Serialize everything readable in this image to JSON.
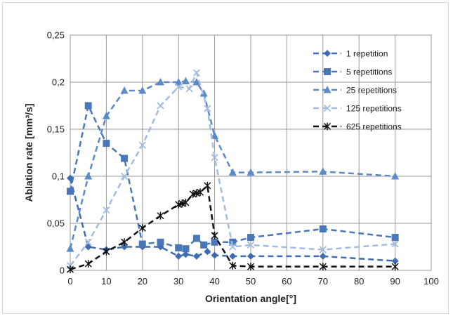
{
  "chart_data": {
    "type": "line",
    "title": "",
    "xlabel": "Orientation angle[°]",
    "ylabel": "Ablation rate [mm³/s]",
    "xlim": [
      0,
      100
    ],
    "ylim": [
      0,
      0.25
    ],
    "xticks": [
      "0",
      "10",
      "20",
      "30",
      "40",
      "50",
      "60",
      "70",
      "80",
      "90",
      "100"
    ],
    "yticks": [
      "0",
      "0,05",
      "0,1",
      "0,15",
      "0,2",
      "0,25"
    ],
    "grid": true,
    "legend_position": "top-right",
    "series": [
      {
        "name": "1 repetition",
        "color": "#3d6cb0",
        "marker": "diamond",
        "x": [
          0,
          5,
          10,
          15,
          20,
          25,
          30,
          32,
          35,
          38,
          40,
          45,
          50,
          70,
          90
        ],
        "y": [
          0.098,
          0.025,
          0.022,
          0.025,
          0.025,
          0.025,
          0.015,
          0.017,
          0.015,
          0.02,
          0.016,
          0.015,
          0.015,
          0.015,
          0.01
        ]
      },
      {
        "name": "5 repetitions",
        "color": "#4a77b8",
        "marker": "square",
        "x": [
          0,
          5,
          10,
          15,
          20,
          25,
          30,
          32,
          35,
          37,
          40,
          45,
          50,
          70,
          90
        ],
        "y": [
          0.084,
          0.175,
          0.135,
          0.119,
          0.028,
          0.03,
          0.024,
          0.023,
          0.034,
          0.027,
          0.03,
          0.03,
          0.035,
          0.044,
          0.035
        ]
      },
      {
        "name": "25 repetitions",
        "color": "#5b8ac7",
        "marker": "triangle",
        "x": [
          0,
          5,
          10,
          15,
          20,
          25,
          30,
          32,
          35,
          37,
          40,
          45,
          50,
          70,
          90
        ],
        "y": [
          0.023,
          0.1,
          0.164,
          0.191,
          0.191,
          0.2,
          0.2,
          0.201,
          0.2,
          0.188,
          0.143,
          0.104,
          0.104,
          0.105,
          0.1
        ]
      },
      {
        "name": "125 repetitions",
        "color": "#a3bde0",
        "marker": "x",
        "x": [
          0,
          5,
          10,
          15,
          20,
          25,
          30,
          33,
          35,
          38,
          40,
          45,
          50,
          70,
          90
        ],
        "y": [
          0.005,
          0.03,
          0.064,
          0.1,
          0.133,
          0.175,
          0.195,
          0.193,
          0.21,
          0.172,
          0.12,
          0.025,
          0.027,
          0.022,
          0.028
        ]
      },
      {
        "name": "625 repetitions",
        "color": "#111111",
        "marker": "asterisk",
        "x": [
          0,
          5,
          10,
          15,
          20,
          25,
          30,
          31,
          32,
          34,
          35,
          36,
          38,
          40,
          45,
          50,
          70,
          90
        ],
        "y": [
          0.001,
          0.007,
          0.02,
          0.03,
          0.045,
          0.058,
          0.07,
          0.071,
          0.072,
          0.081,
          0.082,
          0.083,
          0.09,
          0.037,
          0.005,
          0.004,
          0.004,
          0.004
        ]
      }
    ]
  }
}
